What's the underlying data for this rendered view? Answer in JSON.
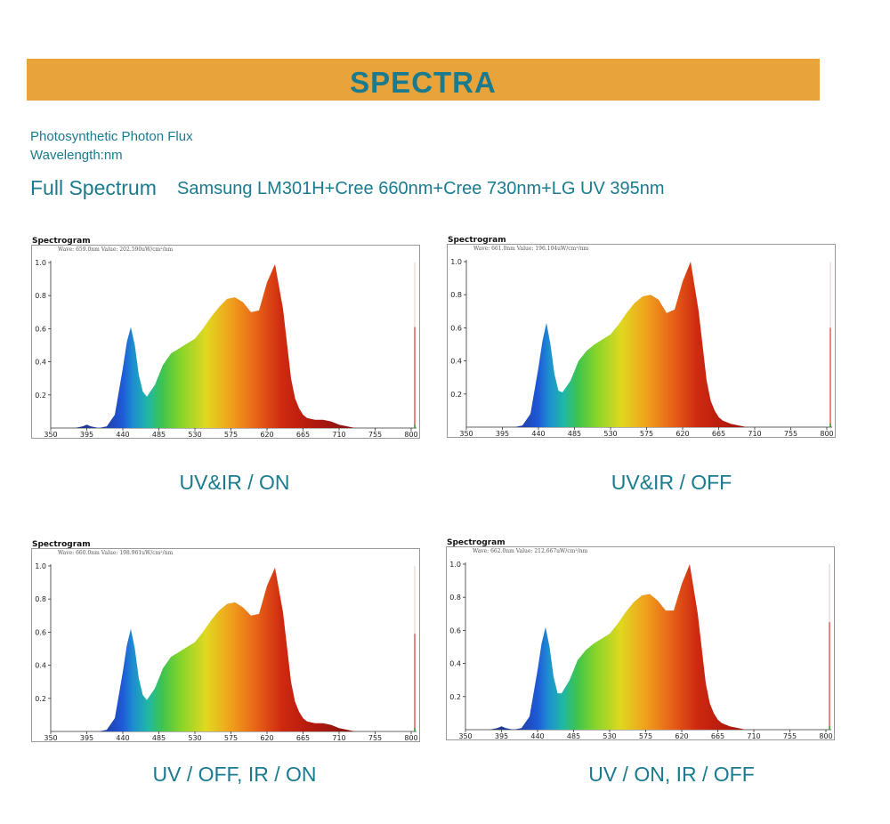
{
  "header": {
    "title": "SPECTRA"
  },
  "info": {
    "line1": "Photosynthetic Photon Flux",
    "line2": "Wavelength:nm",
    "spectrum_label": "Full Spectrum",
    "spectrum_desc": "Samsung LM301H+Cree 660nm+Cree 730nm+LG UV 395nm"
  },
  "colors": {
    "banner": "#e8a33a",
    "text": "#1a7b8f"
  },
  "chart_data": [
    {
      "type": "area",
      "title": "Spectrogram",
      "readout": "Wave: 659.0nm Value: 202.590uW/cm²/nm",
      "caption": "UV&IR / ON",
      "xlim": [
        350,
        800
      ],
      "ylim": [
        0,
        1.0
      ],
      "xticks": [
        350,
        395,
        440,
        485,
        530,
        575,
        620,
        665,
        710,
        755,
        800
      ],
      "yticks": [
        0.2,
        0.4,
        0.6,
        0.8,
        1.0
      ],
      "marker_value": 0.61,
      "x": [
        350,
        380,
        390,
        395,
        400,
        410,
        420,
        430,
        440,
        445,
        450,
        455,
        460,
        465,
        470,
        480,
        490,
        500,
        510,
        520,
        530,
        540,
        550,
        560,
        570,
        580,
        590,
        600,
        610,
        620,
        630,
        640,
        650,
        655,
        660,
        665,
        670,
        680,
        690,
        700,
        710,
        720,
        730,
        740,
        750,
        760,
        770,
        780,
        800
      ],
      "y": [
        0,
        0,
        0.01,
        0.02,
        0.01,
        0,
        0.01,
        0.08,
        0.36,
        0.52,
        0.61,
        0.5,
        0.32,
        0.22,
        0.19,
        0.26,
        0.38,
        0.45,
        0.48,
        0.51,
        0.54,
        0.6,
        0.67,
        0.73,
        0.78,
        0.79,
        0.76,
        0.7,
        0.71,
        0.88,
        0.99,
        0.72,
        0.3,
        0.18,
        0.12,
        0.08,
        0.06,
        0.05,
        0.05,
        0.04,
        0.02,
        0.01,
        0,
        0,
        0,
        0,
        0,
        0,
        0
      ]
    },
    {
      "type": "area",
      "title": "Spectrogram",
      "readout": "Wave: 661.0nm Value: 196.104uW/cm²/nm",
      "caption": "UV&IR / OFF",
      "xlim": [
        350,
        800
      ],
      "ylim": [
        0,
        1.0
      ],
      "xticks": [
        350,
        395,
        440,
        485,
        530,
        575,
        620,
        665,
        710,
        755,
        800
      ],
      "yticks": [
        0.2,
        0.4,
        0.6,
        0.8,
        1.0
      ],
      "marker_value": 0.6,
      "x": [
        350,
        380,
        390,
        395,
        400,
        410,
        420,
        430,
        440,
        445,
        450,
        455,
        460,
        465,
        470,
        480,
        490,
        500,
        510,
        520,
        530,
        540,
        550,
        560,
        570,
        580,
        590,
        600,
        610,
        620,
        630,
        640,
        650,
        655,
        660,
        665,
        670,
        680,
        690,
        700,
        710,
        720,
        730,
        740,
        750,
        760,
        770,
        780,
        800
      ],
      "y": [
        0,
        0,
        0,
        0,
        0,
        0,
        0.01,
        0.08,
        0.36,
        0.52,
        0.63,
        0.5,
        0.32,
        0.22,
        0.21,
        0.28,
        0.4,
        0.46,
        0.5,
        0.53,
        0.56,
        0.62,
        0.69,
        0.75,
        0.79,
        0.8,
        0.77,
        0.69,
        0.71,
        0.88,
        1.0,
        0.7,
        0.28,
        0.16,
        0.1,
        0.06,
        0.04,
        0.02,
        0.01,
        0,
        0,
        0,
        0,
        0,
        0,
        0,
        0,
        0,
        0
      ]
    },
    {
      "type": "area",
      "title": "Spectrogram",
      "readout": "Wave: 660.0nm Value: 198.961uW/cm²/nm",
      "caption": "UV / OFF, IR / ON",
      "xlim": [
        350,
        800
      ],
      "ylim": [
        0,
        1.0
      ],
      "xticks": [
        350,
        395,
        440,
        485,
        530,
        575,
        620,
        665,
        710,
        755,
        800
      ],
      "yticks": [
        0.2,
        0.4,
        0.6,
        0.8,
        1.0
      ],
      "marker_value": 0.59,
      "x": [
        350,
        380,
        390,
        395,
        400,
        410,
        420,
        430,
        440,
        445,
        450,
        455,
        460,
        465,
        470,
        480,
        490,
        500,
        510,
        520,
        530,
        540,
        550,
        560,
        570,
        580,
        590,
        600,
        610,
        620,
        630,
        640,
        650,
        655,
        660,
        665,
        670,
        680,
        690,
        700,
        710,
        720,
        730,
        740,
        750,
        760,
        770,
        780,
        800
      ],
      "y": [
        0,
        0,
        0,
        0,
        0,
        0,
        0.01,
        0.08,
        0.36,
        0.52,
        0.62,
        0.5,
        0.32,
        0.22,
        0.19,
        0.26,
        0.38,
        0.45,
        0.48,
        0.51,
        0.54,
        0.6,
        0.67,
        0.73,
        0.77,
        0.78,
        0.75,
        0.7,
        0.71,
        0.88,
        0.99,
        0.72,
        0.3,
        0.18,
        0.12,
        0.08,
        0.06,
        0.05,
        0.05,
        0.04,
        0.02,
        0.01,
        0,
        0,
        0,
        0,
        0,
        0,
        0
      ]
    },
    {
      "type": "area",
      "title": "Spectrogram",
      "readout": "Wave: 662.0nm Value: 212.667uW/cm²/nm",
      "caption": "UV / ON, IR / OFF",
      "xlim": [
        350,
        800
      ],
      "ylim": [
        0,
        1.0
      ],
      "xticks": [
        350,
        395,
        440,
        485,
        530,
        575,
        620,
        665,
        710,
        755,
        800
      ],
      "yticks": [
        0.2,
        0.4,
        0.6,
        0.8,
        1.0
      ],
      "marker_value": 0.65,
      "x": [
        350,
        380,
        390,
        395,
        400,
        410,
        420,
        430,
        440,
        445,
        450,
        455,
        460,
        465,
        470,
        480,
        490,
        500,
        510,
        520,
        530,
        540,
        550,
        560,
        570,
        580,
        590,
        600,
        610,
        620,
        630,
        640,
        650,
        655,
        660,
        665,
        670,
        680,
        690,
        700,
        710,
        720,
        730,
        740,
        750,
        760,
        770,
        780,
        800
      ],
      "y": [
        0,
        0,
        0.01,
        0.02,
        0.01,
        0,
        0.01,
        0.08,
        0.36,
        0.52,
        0.62,
        0.5,
        0.32,
        0.22,
        0.22,
        0.3,
        0.42,
        0.48,
        0.52,
        0.55,
        0.58,
        0.64,
        0.71,
        0.77,
        0.81,
        0.82,
        0.78,
        0.72,
        0.72,
        0.88,
        1.0,
        0.7,
        0.28,
        0.16,
        0.1,
        0.06,
        0.04,
        0.02,
        0.01,
        0,
        0,
        0,
        0,
        0,
        0,
        0,
        0,
        0,
        0
      ]
    }
  ]
}
